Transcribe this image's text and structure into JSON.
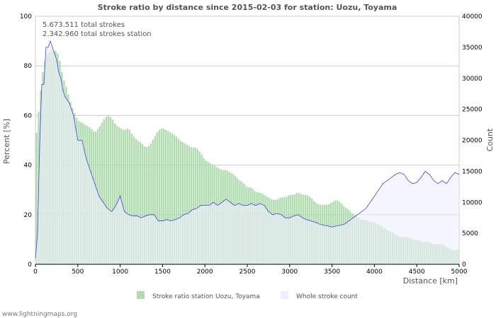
{
  "chart_data": {
    "type": "bar",
    "title": "Stroke ratio by distance since 2015-02-03 for station: Uozu, Toyama",
    "annotations": [
      "5.673.511 total strokes",
      "2.342.960 total strokes station"
    ],
    "xlabel": "Distance   [km]",
    "ylabel": "Percent   [%]",
    "y2label": "Count",
    "xlim": [
      0,
      5000
    ],
    "ylim": [
      0,
      100
    ],
    "y2lim": [
      0,
      40000
    ],
    "xticks": [
      "0",
      "500",
      "1000",
      "1500",
      "2000",
      "2500",
      "3000",
      "3500",
      "4000",
      "4500",
      "5000"
    ],
    "yticks": [
      "0",
      "20",
      "40",
      "60",
      "80",
      "100"
    ],
    "y2ticks": [
      "0",
      "5000",
      "10000",
      "15000",
      "20000",
      "25000",
      "30000",
      "35000",
      "40000"
    ],
    "grid": true,
    "legend_position": "bottom",
    "x": [
      0,
      25,
      50,
      75,
      100,
      125,
      150,
      175,
      200,
      225,
      250,
      275,
      300,
      325,
      350,
      375,
      400,
      425,
      450,
      475,
      500,
      550,
      600,
      650,
      700,
      750,
      800,
      850,
      900,
      950,
      1000,
      1050,
      1100,
      1150,
      1200,
      1250,
      1300,
      1350,
      1400,
      1450,
      1500,
      1550,
      1600,
      1650,
      1700,
      1750,
      1800,
      1850,
      1900,
      1950,
      2000,
      2050,
      2100,
      2150,
      2200,
      2250,
      2300,
      2350,
      2400,
      2450,
      2500,
      2550,
      2600,
      2650,
      2700,
      2750,
      2800,
      2850,
      2900,
      2950,
      3000,
      3050,
      3100,
      3150,
      3200,
      3250,
      3300,
      3350,
      3400,
      3450,
      3500,
      3550,
      3600,
      3650,
      3700,
      3750,
      3800,
      3850,
      3900,
      3950,
      4000,
      4050,
      4100,
      4150,
      4200,
      4250,
      4300,
      4350,
      4400,
      4450,
      4500,
      4550,
      4600,
      4650,
      4700,
      4750,
      4800,
      4850,
      4900,
      4950,
      5000
    ],
    "series": [
      {
        "name": "Stroke ratio station Uozu, Toyama",
        "axis": "left",
        "color": "#b0dcb0",
        "values": [
          48,
          58,
          65,
          75,
          80,
          84,
          85,
          86,
          86.5,
          86,
          86,
          84,
          80,
          75,
          73,
          70,
          67,
          64,
          62,
          60,
          58,
          57,
          56,
          55,
          53,
          55,
          58,
          60,
          59,
          56,
          55,
          54,
          55,
          52,
          50,
          49,
          47,
          48,
          51,
          54,
          55,
          54,
          53,
          52,
          50,
          49,
          48,
          47,
          47,
          45,
          42,
          41,
          40,
          39,
          38,
          38,
          37,
          36,
          34,
          33,
          31,
          31,
          29,
          29,
          28,
          27,
          26,
          26,
          27,
          27,
          28,
          28,
          29,
          28,
          28,
          27,
          25,
          24,
          24,
          24,
          25,
          26,
          25,
          23,
          22,
          20,
          19,
          18,
          18,
          17,
          17,
          16,
          15,
          14,
          13,
          12,
          11,
          11,
          11,
          10,
          10,
          9,
          9,
          9,
          8,
          8,
          8,
          7,
          6,
          5.5,
          6
        ]
      },
      {
        "name": "Whole stroke count",
        "axis": "right",
        "color": "#4444dd",
        "fill": "#eeeeff",
        "values": [
          1000,
          5000,
          19000,
          29000,
          29000,
          35000,
          35000,
          36000,
          35000,
          34000,
          33000,
          31000,
          30000,
          28000,
          27000,
          26500,
          26000,
          25000,
          24000,
          22000,
          20000,
          20000,
          17000,
          15000,
          13000,
          11000,
          10000,
          9000,
          8500,
          9500,
          11000,
          8500,
          8000,
          7800,
          7800,
          7500,
          7800,
          8000,
          8000,
          7000,
          7000,
          7200,
          7000,
          7200,
          7500,
          8000,
          8200,
          8800,
          9000,
          9500,
          9500,
          9500,
          10000,
          9500,
          10000,
          10500,
          10000,
          9500,
          9800,
          9500,
          9500,
          9800,
          9500,
          9800,
          9500,
          8500,
          8000,
          8200,
          8000,
          7500,
          7500,
          7800,
          8000,
          7500,
          7200,
          7000,
          6800,
          6500,
          6300,
          6200,
          6000,
          6200,
          6300,
          6500,
          7000,
          7500,
          8000,
          8500,
          9000,
          10000,
          11000,
          12000,
          13000,
          13500,
          14000,
          14500,
          14800,
          14500,
          13500,
          13000,
          13200,
          14000,
          15000,
          14500,
          13500,
          13000,
          13500,
          13000,
          14000,
          14800,
          14500
        ]
      }
    ]
  },
  "footer": "www.lightningmaps.org"
}
